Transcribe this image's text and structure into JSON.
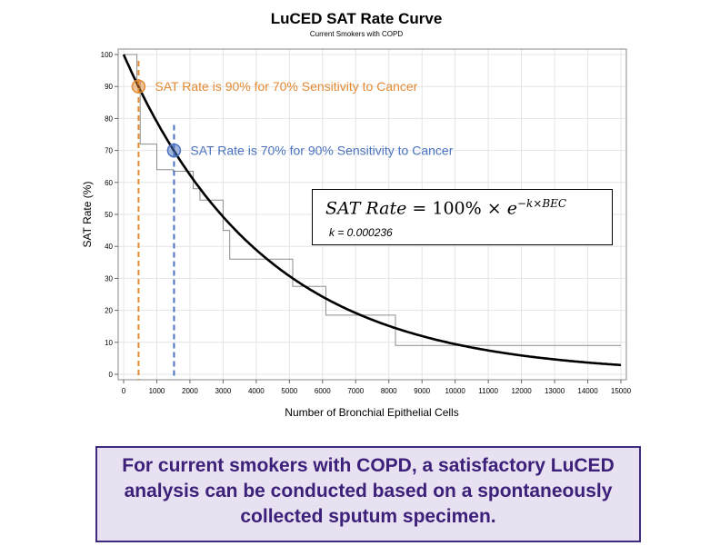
{
  "chart_data": {
    "type": "line",
    "title": "LuCED SAT Rate Curve",
    "subtitle": "Current Smokers with COPD",
    "xlabel": "Number of Bronchial Epithelial Cells",
    "ylabel": "SAT Rate (%)",
    "xlim": [
      0,
      15000
    ],
    "ylim": [
      0,
      100
    ],
    "xticks": [
      0,
      1000,
      2000,
      3000,
      4000,
      5000,
      6000,
      7000,
      8000,
      9000,
      10000,
      11000,
      12000,
      13000,
      14000,
      15000
    ],
    "yticks": [
      0,
      10,
      20,
      30,
      40,
      50,
      60,
      70,
      80,
      90,
      100
    ],
    "grid": true,
    "fit_k": 0.000236,
    "step_series": {
      "x": [
        0,
        400,
        400,
        500,
        500,
        1000,
        1000,
        1500,
        1500,
        2100,
        2100,
        2300,
        2300,
        3000,
        3000,
        3200,
        3200,
        5100,
        5100,
        6100,
        6100,
        8200,
        8200,
        15000
      ],
      "y": [
        100,
        100,
        92,
        92,
        72,
        72,
        64,
        64,
        63.5,
        63.5,
        58,
        58,
        54.5,
        54.5,
        45,
        45,
        36,
        36,
        27.5,
        27.5,
        18.5,
        18.5,
        9,
        9
      ]
    },
    "markers": [
      {
        "x": 450,
        "y": 90,
        "color": "#e38a34",
        "label": "SAT Rate is 90% for 70% Sensitivity to Cancer"
      },
      {
        "x": 1520,
        "y": 70,
        "color": "#4a72c0",
        "label": "SAT Rate is 70% for 90% Sensitivity to Cancer"
      }
    ]
  },
  "formula": {
    "lhs": "SAT Rate",
    "equals": "=",
    "coef": "100%",
    "times": "×",
    "base": "e",
    "exponent": "−k×BEC",
    "k_text": "k = 0.000236"
  },
  "callout": "For current smokers with COPD, a satisfactory LuCED analysis can be conducted based on a spontaneously collected sputum specimen."
}
